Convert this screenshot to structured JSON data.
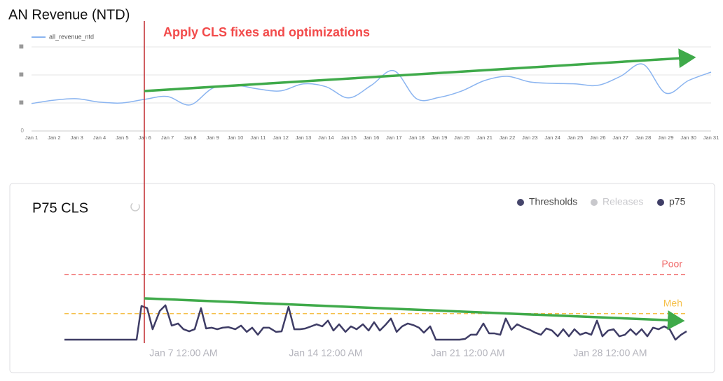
{
  "chart_data": [
    {
      "type": "line",
      "title": "AN Revenue (NTD)",
      "annotation": {
        "text": "Apply CLS fixes and optimizations",
        "color": "#f24a4a"
      },
      "categories": [
        "Jan 1",
        "Jan 2",
        "Jan 3",
        "Jan 4",
        "Jan 5",
        "Jan 6",
        "Jan 7",
        "Jan 8",
        "Jan 9",
        "Jan 10",
        "Jan 11",
        "Jan 12",
        "Jan 13",
        "Jan 14",
        "Jan 15",
        "Jan 16",
        "Jan 17",
        "Jan 18",
        "Jan 19",
        "Jan 20",
        "Jan 21",
        "Jan 22",
        "Jan 23",
        "Jan 24",
        "Jan 25",
        "Jan 26",
        "Jan 27",
        "Jan 28",
        "Jan 29",
        "Jan 30",
        "Jan 31"
      ],
      "series": [
        {
          "name": "all_revenue_ntd",
          "color": "#8ab4f0",
          "values": [
            0.98,
            1.1,
            1.15,
            1.03,
            1.0,
            1.13,
            1.23,
            0.93,
            1.53,
            1.63,
            1.5,
            1.43,
            1.68,
            1.58,
            1.18,
            1.63,
            2.15,
            1.15,
            1.2,
            1.43,
            1.8,
            1.95,
            1.75,
            1.7,
            1.68,
            1.63,
            1.95,
            2.38,
            1.35,
            1.8,
            2.1
          ]
        }
      ],
      "ylim": [
        0,
        4
      ],
      "yticks": [
        0,
        {
          "value": 1,
          "label": "■"
        },
        {
          "value": 2,
          "label": "■"
        },
        {
          "value": 3,
          "label": "■"
        }
      ],
      "grid": true,
      "smooth": true
    },
    {
      "type": "line",
      "title": "P75 CLS",
      "thresholds": {
        "name": "Thresholds",
        "color": "#45456b",
        "lines": [
          {
            "label": "Poor",
            "value": 0.25,
            "color": "#f06b6b"
          },
          {
            "label": "Meh",
            "value": 0.1,
            "color": "#f5c04a"
          }
        ]
      },
      "releases": {
        "name": "Releases",
        "color": "#c8c8cc"
      },
      "x": [
        1.14,
        4.69,
        4.93,
        5.21,
        5.48,
        5.83,
        6.11,
        6.42,
        6.73,
        7.0,
        7.28,
        7.55,
        7.86,
        8.11,
        8.38,
        8.66,
        8.93,
        9.21,
        9.55,
        9.83,
        10.11,
        10.38,
        10.66,
        10.93,
        11.21,
        11.55,
        11.83,
        12.17,
        12.45,
        12.73,
        13.0,
        13.28,
        13.55,
        13.83,
        14.11,
        14.38,
        14.66,
        14.97,
        15.24,
        15.52,
        15.83,
        16.11,
        16.38,
        16.66,
        16.93,
        17.21,
        17.49,
        17.76,
        18.04,
        18.31,
        18.59,
        18.83,
        19.14,
        19.42,
        19.69,
        19.97,
        20.31,
        20.59,
        20.86,
        21.14,
        21.42,
        21.76,
        22.04,
        22.31,
        22.59,
        22.86,
        23.14,
        23.42,
        23.76,
        24.04,
        24.31,
        24.59,
        24.86,
        25.14,
        25.42,
        25.69,
        25.97,
        26.24,
        26.52,
        26.8,
        27.07,
        27.35,
        27.62,
        27.9,
        28.17,
        28.45,
        28.73,
        29.0,
        29.28,
        29.55,
        29.83,
        30.11,
        30.38,
        30.66,
        30.93,
        31.21,
        31.49,
        31.76
      ],
      "series": [
        {
          "name": "p75",
          "color": "#3f3d66",
          "values": [
            0,
            0,
            0.129,
            0.121,
            0.04,
            0.11,
            0.132,
            0.054,
            0.062,
            0.04,
            0.032,
            0.04,
            0.121,
            0.043,
            0.046,
            0.04,
            0.046,
            0.048,
            0.04,
            0.054,
            0.03,
            0.046,
            0.019,
            0.046,
            0.046,
            0.03,
            0.032,
            0.126,
            0.04,
            0.04,
            0.043,
            0.051,
            0.059,
            0.051,
            0.073,
            0.035,
            0.059,
            0.03,
            0.051,
            0.04,
            0.059,
            0.035,
            0.067,
            0.035,
            0.056,
            0.081,
            0.03,
            0.051,
            0.062,
            0.056,
            0.046,
            0.027,
            0.051,
            0,
            0,
            0,
            0,
            0,
            0.003,
            0.019,
            0.019,
            0.062,
            0.024,
            0.024,
            0.019,
            0.081,
            0.038,
            0.059,
            0.046,
            0.038,
            0.027,
            0.019,
            0.043,
            0.035,
            0.013,
            0.04,
            0.013,
            0.04,
            0.019,
            0.027,
            0.019,
            0.073,
            0.013,
            0.035,
            0.04,
            0.013,
            0.019,
            0.04,
            0.019,
            0.04,
            0.013,
            0.046,
            0.04,
            0.051,
            0.04,
            0,
            0.019,
            0.032
          ]
        }
      ],
      "xlim": [
        1.14,
        31.76
      ],
      "xticks": [
        {
          "value": 7,
          "label": "Jan 7 12:00 AM"
        },
        {
          "value": 14,
          "label": "Jan 14 12:00 AM"
        },
        {
          "value": 21,
          "label": "Jan 21 12:00 AM"
        },
        {
          "value": 28,
          "label": "Jan 28 12:00 AM"
        }
      ],
      "ylim": [
        0,
        0.4
      ]
    }
  ]
}
